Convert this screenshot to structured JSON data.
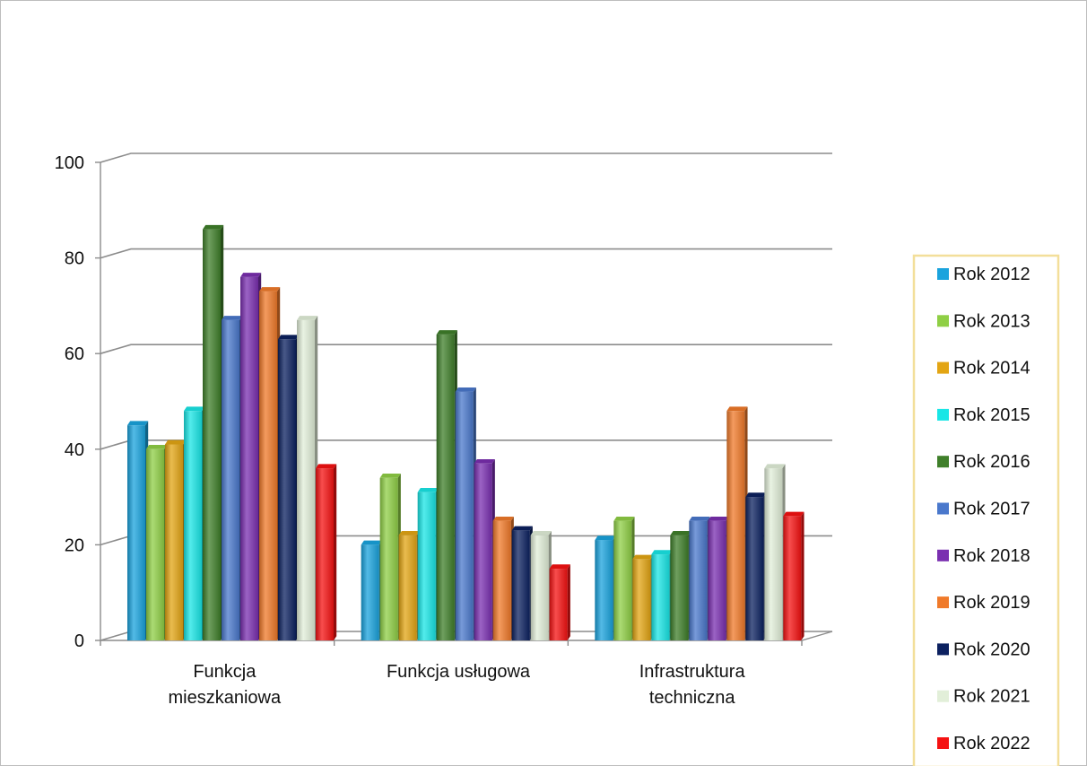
{
  "chart_data": {
    "type": "bar",
    "title": "",
    "xlabel": "",
    "ylabel": "",
    "ylim": [
      0,
      100
    ],
    "yticks": [
      "0",
      "20",
      "40",
      "60",
      "80",
      "100"
    ],
    "grid": true,
    "legend_position": "right",
    "categories": [
      [
        "Funkcja",
        "mieszkaniowa"
      ],
      [
        "Funkcja usługowa"
      ],
      [
        "Infrastruktura",
        "techniczna"
      ]
    ],
    "series": [
      {
        "name": "Rok 2012",
        "color": "#1aa3dd",
        "values": [
          45,
          20,
          21
        ]
      },
      {
        "name": "Rok 2013",
        "color": "#8fcf45",
        "values": [
          40,
          34,
          25
        ]
      },
      {
        "name": "Rok 2014",
        "color": "#e3a514",
        "values": [
          41,
          22,
          17
        ]
      },
      {
        "name": "Rok 2015",
        "color": "#19e6e6",
        "values": [
          48,
          31,
          18
        ]
      },
      {
        "name": "Rok 2016",
        "color": "#3f7f2a",
        "values": [
          86,
          64,
          22
        ]
      },
      {
        "name": "Rok 2017",
        "color": "#4a78cc",
        "values": [
          67,
          52,
          25
        ]
      },
      {
        "name": "Rok 2018",
        "color": "#7a2fb0",
        "values": [
          76,
          37,
          25
        ]
      },
      {
        "name": "Rok 2019",
        "color": "#f07a2a",
        "values": [
          73,
          25,
          48
        ]
      },
      {
        "name": "Rok 2020",
        "color": "#0c2160",
        "values": [
          63,
          23,
          30
        ]
      },
      {
        "name": "Rok 2021",
        "color": "#e2efd9",
        "values": [
          67,
          22,
          36
        ]
      },
      {
        "name": "Rok 2022",
        "color": "#f51212",
        "values": [
          36,
          15,
          26
        ]
      }
    ]
  }
}
